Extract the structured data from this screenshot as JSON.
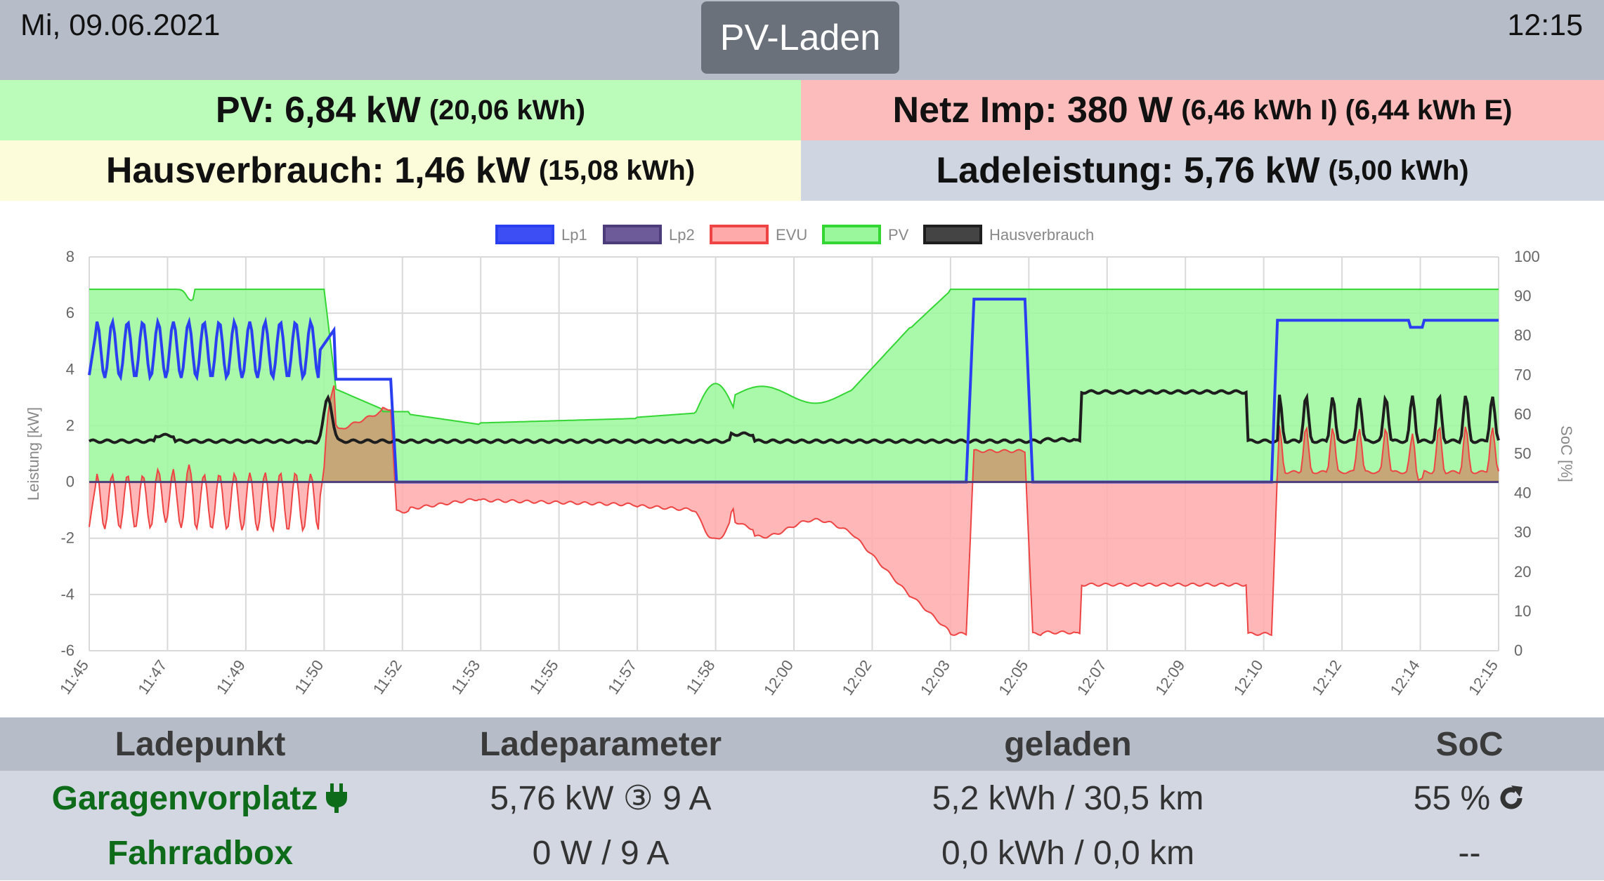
{
  "header": {
    "date": "Mi, 09.06.2021",
    "mode": "PV-Laden",
    "time": "12:15"
  },
  "summary": {
    "pv": {
      "main": "PV: 6,84 kW",
      "detail": "(20,06 kWh)"
    },
    "netz": {
      "main": "Netz Imp: 380 W",
      "detail": "(6,46 kWh I) (6,44 kWh E)"
    },
    "haus": {
      "main": "Hausverbrauch: 1,46 kW",
      "detail": "(15,08 kWh)"
    },
    "lade": {
      "main": "Ladeleistung: 5,76 kW",
      "detail": "(5,00 kWh)"
    }
  },
  "chart_data": {
    "type": "line",
    "ylabel": "Leistung [kW]",
    "y2label": "SoC [%]",
    "ylim": [
      -6,
      8
    ],
    "y2lim": [
      0,
      100
    ],
    "yticks": [
      "8",
      "6",
      "4",
      "2",
      "0",
      "-2",
      "-4",
      "-6"
    ],
    "y2ticks": [
      "100",
      "90",
      "80",
      "70",
      "60",
      "50",
      "40",
      "30",
      "20",
      "10",
      "0"
    ],
    "x_range_minutes": [
      0,
      30
    ],
    "xticks": [
      {
        "label": "11:45",
        "m": 0.0
      },
      {
        "label": "11:47",
        "m": 2.0
      },
      {
        "label": "11:49",
        "m": 4.0
      },
      {
        "label": "11:50",
        "m": 6.0
      },
      {
        "label": "11:52",
        "m": 8.0
      },
      {
        "label": "11:53",
        "m": 10.0
      },
      {
        "label": "11:55",
        "m": 12.0
      },
      {
        "label": "11:57",
        "m": 14.0
      },
      {
        "label": "11:58",
        "m": 16.0
      },
      {
        "label": "12:00",
        "m": 18.0
      },
      {
        "label": "12:02",
        "m": 20.0
      },
      {
        "label": "12:03",
        "m": 22.0
      },
      {
        "label": "12:05",
        "m": 24.0
      },
      {
        "label": "12:07",
        "m": 26.0
      },
      {
        "label": "12:09",
        "m": 28.0
      },
      {
        "label": "12:10",
        "m": 30.0
      },
      {
        "label": "12:12",
        "m": 32.0
      },
      {
        "label": "12:14",
        "m": 34.0
      },
      {
        "label": "12:15",
        "m": 36.0
      }
    ],
    "legend_position": "top",
    "grid": true,
    "series": [
      {
        "name": "Lp1",
        "color": "#2a3ff0",
        "fill": "#3e4ef5"
      },
      {
        "name": "Lp2",
        "color": "#4d3c7a",
        "fill": "#6d5b99"
      },
      {
        "name": "EVU",
        "color": "#ee4444",
        "fill": "#ffaaaa"
      },
      {
        "name": "PV",
        "color": "#33d633",
        "fill": "#9bf79b"
      },
      {
        "name": "Hausverbrauch",
        "color": "#1e1e1e",
        "fill": "#444444"
      }
    ]
  },
  "table": {
    "headers": {
      "ladepunkt": "Ladepunkt",
      "ladeparameter": "Ladeparameter",
      "geladen": "geladen",
      "soc": "SoC"
    },
    "rows": [
      {
        "name": "Garagenvorplatz",
        "icon": "plug-icon",
        "param": "5,76 kW ③ 9 A",
        "geladen": "5,2 kWh / 30,5 km",
        "soc": "55 %",
        "soc_icon": "refresh-icon"
      },
      {
        "name": "Fahrradbox",
        "param": "0 W / 9 A",
        "geladen": "0,0 kWh / 0,0 km",
        "soc": "--"
      }
    ]
  }
}
